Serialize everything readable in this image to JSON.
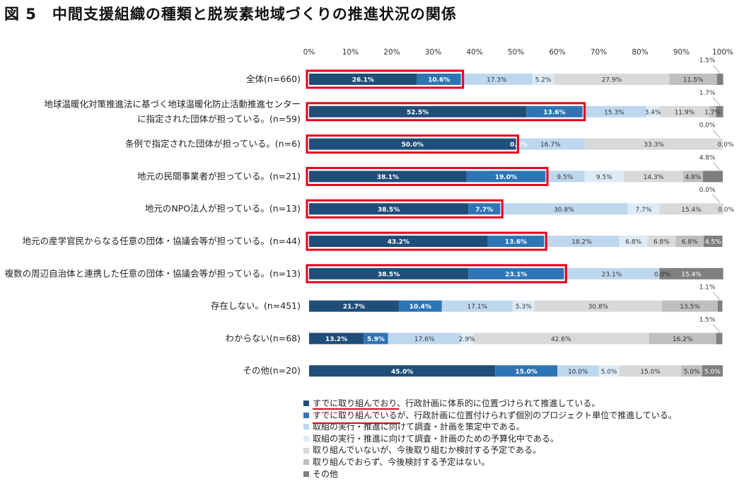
{
  "title": "図 5　中間支援組織の種類と脱炭素地域づくりの推進状況の関係",
  "chart_data": {
    "type": "bar",
    "orientation": "horizontal",
    "stacked": true,
    "percent": true,
    "xlim": [
      0,
      100
    ],
    "x_ticks": [
      "0%",
      "10%",
      "20%",
      "30%",
      "40%",
      "50%",
      "60%",
      "70%",
      "80%",
      "90%",
      "100%"
    ],
    "categories": [
      [
        "全体(n=660)"
      ],
      [
        "地球温暖化対策推進法に基づく地球温暖化防止活動推進センター",
        "に指定された団体が担っている。(n=59)"
      ],
      [
        "条例で指定された団体が担っている。(n=6)"
      ],
      [
        "地元の民間事業者が担っている。(n=21)"
      ],
      [
        "地元のNPO法人が担っている。(n=13)"
      ],
      [
        "地元の産学官民からなる任意の団体・協議会等が担っている。(n=44)"
      ],
      [
        "複数の周辺自治体と連携した任意の団体・協議会等が担っている。(n=13)"
      ],
      [
        "存在しない。(n=451)"
      ],
      [
        "わからない(n=68)"
      ],
      [
        "その他(n=20)"
      ]
    ],
    "series": [
      {
        "name": "すでに取り組んでおり、行政計画に体系的に位置づけられて推進している。",
        "color": "#1f4e79",
        "values": [
          26.1,
          52.5,
          50.0,
          38.1,
          38.5,
          43.2,
          38.5,
          21.7,
          13.2,
          45.0
        ],
        "labels": [
          "26.1%",
          "52.5%",
          "50.0%",
          "38.1%",
          "38.5%",
          "43.2%",
          "38.5%",
          "21.7%",
          "13.2%",
          "45.0%"
        ]
      },
      {
        "name": "すでに取り組んでいるが、行政計画に位置付けられず個別のプロジェクト単位で推進している。",
        "color": "#2e75b6",
        "values": [
          10.6,
          13.6,
          0.0,
          19.0,
          7.7,
          13.6,
          23.1,
          10.4,
          5.9,
          15.0
        ],
        "labels": [
          "10.6%",
          "13.6%",
          "0.0%",
          "19.0%",
          "7.7%",
          "13.6%",
          "23.1%",
          "10.4%",
          "5.9%",
          "15.0%"
        ]
      },
      {
        "name": "取組の実行・推進に向けて調査・計画を策定中である。",
        "color": "#bdd7ee",
        "values": [
          17.3,
          15.3,
          16.7,
          9.5,
          30.8,
          18.2,
          23.1,
          17.1,
          17.6,
          10.0
        ],
        "labels": [
          "17.3%",
          "15.3%",
          "16.7%",
          "9.5%",
          "30.8%",
          "18.2%",
          "23.1%",
          "17.1%",
          "17.6%",
          "10.0%"
        ]
      },
      {
        "name": "取組の実行・推進に向けて調査・計画のための予算化中である。",
        "color": "#ddebf7",
        "values": [
          5.2,
          3.4,
          0.0,
          9.5,
          7.7,
          6.8,
          0.0,
          5.3,
          2.9,
          5.0
        ],
        "labels": [
          "5.2%",
          "3.4%",
          "",
          "9.5%",
          "7.7%",
          "6.8%",
          "0.0%",
          "5.3%",
          "2.9%",
          "5.0%"
        ]
      },
      {
        "name": "取り組んでいないが、今後取り組むか検討する予定である。",
        "color": "#d9d9d9",
        "values": [
          27.9,
          11.9,
          33.3,
          14.3,
          15.4,
          6.8,
          0.0,
          30.8,
          42.6,
          15.0
        ],
        "labels": [
          "27.9%",
          "11.9%",
          "33.3%",
          "14.3%",
          "15.4%",
          "6.8%",
          "",
          "30.8%",
          "42.6%",
          "15.0%"
        ]
      },
      {
        "name": "取り組んでおらず、今後検討する予定はない。",
        "color": "#bfbfbf",
        "values": [
          11.5,
          1.7,
          0.0,
          4.8,
          0.0,
          6.8,
          0.0,
          13.5,
          16.2,
          5.0
        ],
        "labels": [
          "11.5%",
          "1.7%",
          "0.0%",
          "4.8%",
          "0.0%",
          "6.8%",
          "",
          "13.5%",
          "16.2%",
          "5.0%"
        ]
      },
      {
        "name": "その他",
        "color": "#7f7f7f",
        "values": [
          1.5,
          1.7,
          0.0,
          4.8,
          0.0,
          4.5,
          15.4,
          1.1,
          1.5,
          5.0
        ],
        "labels": [
          "",
          "",
          "",
          "",
          "",
          "4.5%",
          "15.4%",
          "",
          "",
          "5.0%"
        ]
      }
    ],
    "callouts": [
      {
        "row": 0,
        "text": "1.5%"
      },
      {
        "row": 1,
        "text": "1.7%"
      },
      {
        "row": 2,
        "text": "0.0%"
      },
      {
        "row": 3,
        "text": "4.8%"
      },
      {
        "row": 4,
        "text": "0.0%"
      },
      {
        "row": 7,
        "text": "1.1%"
      },
      {
        "row": 8,
        "text": "1.5%"
      }
    ],
    "highlighted_rows": [
      0,
      1,
      2,
      3,
      4,
      5,
      6
    ],
    "underlined_legend_items": [
      0,
      1
    ],
    "legend_position": "bottom",
    "highlight_color": "#e8001a"
  }
}
